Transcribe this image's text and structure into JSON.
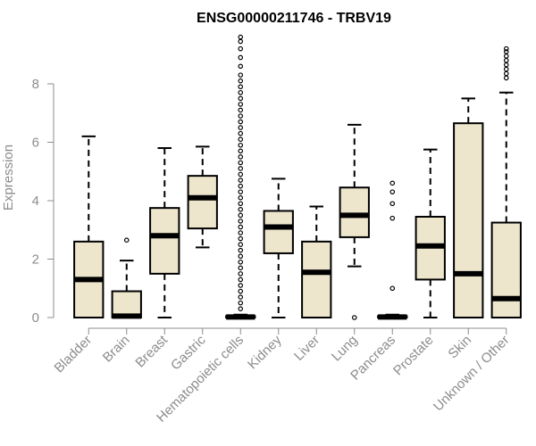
{
  "chart_data": {
    "type": "box",
    "title": "ENSG00000211746 - TRBV19",
    "xlabel": "",
    "ylabel": "Expression",
    "ylim": [
      0,
      9.8
    ],
    "yticks": [
      0,
      2,
      4,
      6,
      8
    ],
    "box_color": "#ede6cd",
    "categories": [
      "Bladder",
      "Brain",
      "Breast",
      "Gastric",
      "Hematopoietic cells",
      "Kidney",
      "Liver",
      "Lung",
      "Pancreas",
      "Prostate",
      "Skin",
      "Unknown / Other"
    ],
    "boxes": [
      {
        "min": 0,
        "q1": 0,
        "median": 1.3,
        "q3": 2.6,
        "max": 6.2,
        "outliers": []
      },
      {
        "min": 0,
        "q1": 0,
        "median": 0.05,
        "q3": 0.9,
        "max": 1.95,
        "outliers": [
          2.65
        ]
      },
      {
        "min": 0,
        "q1": 1.5,
        "median": 2.8,
        "q3": 3.75,
        "max": 5.8,
        "outliers": []
      },
      {
        "min": 2.4,
        "q1": 3.05,
        "median": 4.1,
        "q3": 4.85,
        "max": 5.85,
        "outliers": []
      },
      {
        "min": 0,
        "q1": 0,
        "median": 0.02,
        "q3": 0.05,
        "max": 0.1,
        "outliers": [
          0.3,
          0.5,
          0.7,
          0.9,
          1.1,
          1.3,
          1.5,
          1.7,
          1.9,
          2.1,
          2.3,
          2.5,
          2.7,
          2.9,
          3.1,
          3.3,
          3.5,
          3.7,
          3.9,
          4.1,
          4.3,
          4.5,
          4.7,
          4.9,
          5.1,
          5.3,
          5.5,
          5.7,
          5.9,
          6.1,
          6.3,
          6.5,
          6.7,
          6.9,
          7.1,
          7.3,
          7.5,
          7.7,
          7.9,
          8.1,
          8.3,
          8.6,
          8.9,
          9.2,
          9.45,
          9.6
        ]
      },
      {
        "min": 0,
        "q1": 2.2,
        "median": 3.1,
        "q3": 3.65,
        "max": 4.75,
        "outliers": []
      },
      {
        "min": 0,
        "q1": 0,
        "median": 1.55,
        "q3": 2.6,
        "max": 3.8,
        "outliers": []
      },
      {
        "min": 1.75,
        "q1": 2.75,
        "median": 3.5,
        "q3": 4.45,
        "max": 6.6,
        "outliers": [
          0.0
        ]
      },
      {
        "min": 0,
        "q1": 0,
        "median": 0.02,
        "q3": 0.05,
        "max": 0.1,
        "outliers": [
          1.0,
          3.4,
          3.9,
          4.3,
          4.6
        ]
      },
      {
        "min": 0,
        "q1": 1.3,
        "median": 2.45,
        "q3": 3.45,
        "max": 5.75,
        "outliers": []
      },
      {
        "min": 0,
        "q1": 0,
        "median": 1.5,
        "q3": 6.65,
        "max": 7.5,
        "outliers": []
      },
      {
        "min": 0,
        "q1": 0,
        "median": 0.65,
        "q3": 3.25,
        "max": 7.7,
        "outliers": [
          8.2,
          8.35,
          8.5,
          8.65,
          8.8,
          8.95,
          9.1,
          9.2
        ]
      }
    ]
  }
}
